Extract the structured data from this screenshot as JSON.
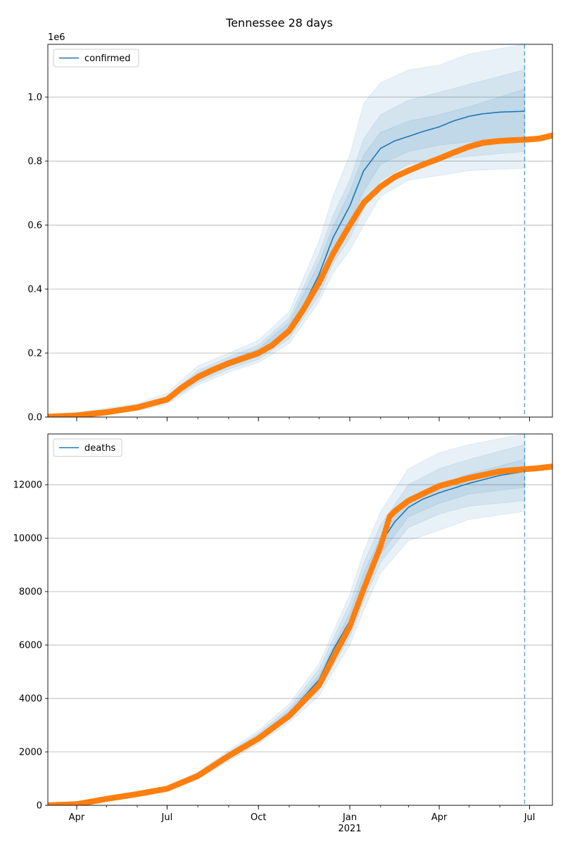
{
  "figure": {
    "title": "Tennessee 28 days"
  },
  "colors": {
    "model": "#1f77b4",
    "observed": "#ff7f0e",
    "band": "#1f77b4",
    "grid": "#b0b0b0",
    "vline": "#1f77b4"
  },
  "chart_data": [
    {
      "type": "line",
      "panel": "confirmed",
      "title": "Tennessee 28 days",
      "xlabel": "",
      "ylabel": "",
      "y_offset_label": "1e6",
      "y_scale": 1000000,
      "xlim": [
        "2020-03-03",
        "2021-07-24"
      ],
      "ylim": [
        0,
        1165000
      ],
      "yticks": [
        0,
        200000,
        400000,
        600000,
        800000,
        1000000
      ],
      "ytick_labels": [
        "0.0",
        "0.2",
        "0.4",
        "0.6",
        "0.8",
        "1.0"
      ],
      "xticks": [
        {
          "date": "2020-04-01",
          "label": "Apr"
        },
        {
          "date": "2020-07-01",
          "label": "Jul"
        },
        {
          "date": "2020-10-01",
          "label": "Oct"
        },
        {
          "date": "2021-01-01",
          "label": "Jan",
          "sublabel": "2021"
        },
        {
          "date": "2021-04-01",
          "label": "Apr"
        },
        {
          "date": "2021-07-01",
          "label": "Jul"
        }
      ],
      "grid": "horizontal",
      "legend": {
        "placement": "upper-left",
        "entries": [
          "confirmed"
        ]
      },
      "forecast_date": "2021-06-26",
      "series": [
        {
          "name": "confirmed",
          "role": "model",
          "x": [
            "2020-03-03",
            "2020-04-01",
            "2020-05-01",
            "2020-06-01",
            "2020-07-01",
            "2020-07-15",
            "2020-08-01",
            "2020-08-15",
            "2020-09-01",
            "2020-09-15",
            "2020-10-01",
            "2020-10-15",
            "2020-11-01",
            "2020-11-15",
            "2020-12-01",
            "2020-12-15",
            "2021-01-01",
            "2021-01-15",
            "2021-02-01",
            "2021-02-15",
            "2021-03-01",
            "2021-03-15",
            "2021-04-01",
            "2021-04-15",
            "2021-05-01",
            "2021-05-15",
            "2021-06-01",
            "2021-06-26"
          ],
          "y": [
            1000,
            5000,
            15000,
            30000,
            55000,
            95000,
            125000,
            148000,
            168000,
            183000,
            202000,
            230000,
            278000,
            345000,
            445000,
            560000,
            660000,
            770000,
            840000,
            863000,
            877000,
            892000,
            907000,
            925000,
            940000,
            948000,
            953000,
            956000
          ]
        },
        {
          "role": "observed",
          "x": [
            "2020-03-03",
            "2020-04-01",
            "2020-05-01",
            "2020-06-01",
            "2020-07-01",
            "2020-07-15",
            "2020-08-01",
            "2020-08-15",
            "2020-09-01",
            "2020-09-15",
            "2020-10-01",
            "2020-10-15",
            "2020-11-01",
            "2020-11-15",
            "2020-12-01",
            "2020-12-15",
            "2021-01-01",
            "2021-01-15",
            "2021-02-01",
            "2021-02-15",
            "2021-03-01",
            "2021-03-15",
            "2021-04-01",
            "2021-04-15",
            "2021-05-01",
            "2021-05-15",
            "2021-06-01",
            "2021-06-26",
            "2021-07-10",
            "2021-07-24"
          ],
          "y": [
            1000,
            5000,
            15000,
            30000,
            55000,
            90000,
            125000,
            146000,
            168000,
            183000,
            200000,
            225000,
            270000,
            335000,
            420000,
            510000,
            600000,
            670000,
            720000,
            750000,
            770000,
            788000,
            808000,
            826000,
            845000,
            857000,
            863000,
            867000,
            870000,
            880000
          ]
        }
      ],
      "bands": [
        {
          "x": [
            "2020-03-03",
            "2020-06-01",
            "2020-07-01",
            "2020-08-01",
            "2020-09-01",
            "2020-10-01",
            "2020-11-01",
            "2020-12-01",
            "2020-12-15",
            "2021-01-01",
            "2021-01-15",
            "2021-02-01",
            "2021-03-01",
            "2021-04-01",
            "2021-05-01",
            "2021-06-26"
          ],
          "low": [
            800,
            20000,
            40000,
            100000,
            140000,
            170000,
            230000,
            360000,
            450000,
            520000,
            600000,
            690000,
            740000,
            755000,
            770000,
            778000
          ],
          "high": [
            1500,
            42000,
            75000,
            160000,
            200000,
            240000,
            330000,
            550000,
            690000,
            820000,
            980000,
            1045000,
            1085000,
            1100000,
            1135000,
            1165000
          ]
        },
        {
          "x": [
            "2020-03-03",
            "2020-06-01",
            "2020-07-01",
            "2020-08-01",
            "2020-09-01",
            "2020-10-01",
            "2020-11-01",
            "2020-12-01",
            "2020-12-15",
            "2021-01-01",
            "2021-01-15",
            "2021-02-01",
            "2021-03-01",
            "2021-04-01",
            "2021-05-01",
            "2021-06-26"
          ],
          "low": [
            900,
            23000,
            45000,
            108000,
            150000,
            180000,
            245000,
            380000,
            480000,
            560000,
            650000,
            740000,
            790000,
            805000,
            815000,
            830000
          ],
          "high": [
            1300,
            37000,
            65000,
            145000,
            188000,
            225000,
            310000,
            510000,
            630000,
            740000,
            870000,
            945000,
            990000,
            1015000,
            1040000,
            1085000
          ]
        },
        {
          "x": [
            "2020-03-03",
            "2020-06-01",
            "2020-07-01",
            "2020-08-01",
            "2020-09-01",
            "2020-10-01",
            "2020-11-01",
            "2020-12-01",
            "2020-12-15",
            "2021-01-01",
            "2021-01-15",
            "2021-02-01",
            "2021-03-01",
            "2021-04-01",
            "2021-05-01",
            "2021-06-26"
          ],
          "low": [
            950,
            26000,
            50000,
            115000,
            158000,
            190000,
            260000,
            405000,
            515000,
            605000,
            705000,
            790000,
            830000,
            850000,
            860000,
            870000
          ],
          "high": [
            1200,
            34000,
            60000,
            136000,
            178000,
            214000,
            296000,
            482000,
            595000,
            705000,
            820000,
            890000,
            925000,
            945000,
            970000,
            1025000
          ]
        }
      ]
    },
    {
      "type": "line",
      "panel": "deaths",
      "xlabel": "",
      "ylabel": "",
      "xlim": [
        "2020-03-03",
        "2021-07-24"
      ],
      "ylim": [
        0,
        13900
      ],
      "yticks": [
        0,
        2000,
        4000,
        6000,
        8000,
        10000,
        12000
      ],
      "ytick_labels": [
        "0",
        "2000",
        "4000",
        "6000",
        "8000",
        "10000",
        "12000"
      ],
      "xticks": [
        {
          "date": "2020-04-01",
          "label": "Apr"
        },
        {
          "date": "2020-07-01",
          "label": "Jul"
        },
        {
          "date": "2020-10-01",
          "label": "Oct"
        },
        {
          "date": "2021-01-01",
          "label": "Jan",
          "sublabel": "2021"
        },
        {
          "date": "2021-04-01",
          "label": "Apr"
        },
        {
          "date": "2021-07-01",
          "label": "Jul"
        }
      ],
      "grid": "horizontal",
      "legend": {
        "placement": "upper-left",
        "entries": [
          "deaths"
        ]
      },
      "forecast_date": "2021-06-26",
      "series": [
        {
          "name": "deaths",
          "role": "model",
          "x": [
            "2020-03-03",
            "2020-04-01",
            "2020-05-01",
            "2020-06-01",
            "2020-07-01",
            "2020-08-01",
            "2020-09-01",
            "2020-10-01",
            "2020-11-01",
            "2020-12-01",
            "2020-12-15",
            "2021-01-01",
            "2021-01-15",
            "2021-02-01",
            "2021-02-15",
            "2021-03-01",
            "2021-03-15",
            "2021-04-01",
            "2021-05-01",
            "2021-06-01",
            "2021-06-26"
          ],
          "y": [
            0,
            30,
            230,
            420,
            640,
            1120,
            1850,
            2550,
            3450,
            4700,
            5800,
            6900,
            8300,
            9800,
            10600,
            11150,
            11450,
            11700,
            12050,
            12350,
            12500
          ]
        },
        {
          "role": "observed",
          "x": [
            "2020-03-03",
            "2020-04-01",
            "2020-05-01",
            "2020-06-01",
            "2020-07-01",
            "2020-08-01",
            "2020-09-01",
            "2020-10-01",
            "2020-11-01",
            "2020-12-01",
            "2020-12-15",
            "2021-01-01",
            "2021-01-15",
            "2021-02-01",
            "2021-02-10",
            "2021-02-15",
            "2021-03-01",
            "2021-03-15",
            "2021-04-01",
            "2021-05-01",
            "2021-06-01",
            "2021-06-26",
            "2021-07-10",
            "2021-07-24"
          ],
          "y": [
            0,
            40,
            240,
            420,
            620,
            1100,
            1850,
            2500,
            3350,
            4500,
            5500,
            6700,
            8100,
            9700,
            10800,
            11000,
            11400,
            11650,
            11950,
            12250,
            12500,
            12580,
            12620,
            12680
          ]
        }
      ],
      "bands": [
        {
          "x": [
            "2020-03-03",
            "2020-06-01",
            "2020-07-01",
            "2020-08-01",
            "2020-09-01",
            "2020-10-01",
            "2020-11-01",
            "2020-12-01",
            "2021-01-01",
            "2021-01-15",
            "2021-02-01",
            "2021-03-01",
            "2021-04-01",
            "2021-05-01",
            "2021-06-26"
          ],
          "low": [
            0,
            380,
            560,
            1000,
            1650,
            2300,
            3100,
            4100,
            6000,
            7300,
            8700,
            9900,
            10300,
            10700,
            11000
          ],
          "high": [
            0,
            470,
            720,
            1240,
            2050,
            2800,
            3800,
            5300,
            7900,
            9500,
            11000,
            12600,
            13200,
            13500,
            13900
          ]
        },
        {
          "x": [
            "2020-03-03",
            "2020-06-01",
            "2020-07-01",
            "2020-08-01",
            "2020-09-01",
            "2020-10-01",
            "2020-11-01",
            "2020-12-01",
            "2021-01-01",
            "2021-01-15",
            "2021-02-01",
            "2021-03-01",
            "2021-04-01",
            "2021-05-01",
            "2021-06-26"
          ],
          "low": [
            0,
            395,
            590,
            1040,
            1720,
            2390,
            3230,
            4300,
            6300,
            7650,
            9100,
            10400,
            10900,
            11200,
            11400
          ],
          "high": [
            0,
            450,
            690,
            1200,
            1980,
            2700,
            3650,
            5100,
            7550,
            9050,
            10500,
            12000,
            12600,
            12950,
            13500
          ]
        },
        {
          "x": [
            "2020-03-03",
            "2020-06-01",
            "2020-07-01",
            "2020-08-01",
            "2020-09-01",
            "2020-10-01",
            "2020-11-01",
            "2020-12-01",
            "2021-01-01",
            "2021-01-15",
            "2021-02-01",
            "2021-03-01",
            "2021-04-01",
            "2021-05-01",
            "2021-06-26"
          ],
          "low": [
            0,
            405,
            610,
            1080,
            1790,
            2460,
            3340,
            4480,
            6550,
            7950,
            9400,
            10800,
            11300,
            11650,
            11900
          ],
          "high": [
            0,
            438,
            668,
            1160,
            1910,
            2620,
            3540,
            4880,
            7200,
            8700,
            10050,
            11500,
            12000,
            12400,
            12950
          ]
        }
      ]
    }
  ]
}
